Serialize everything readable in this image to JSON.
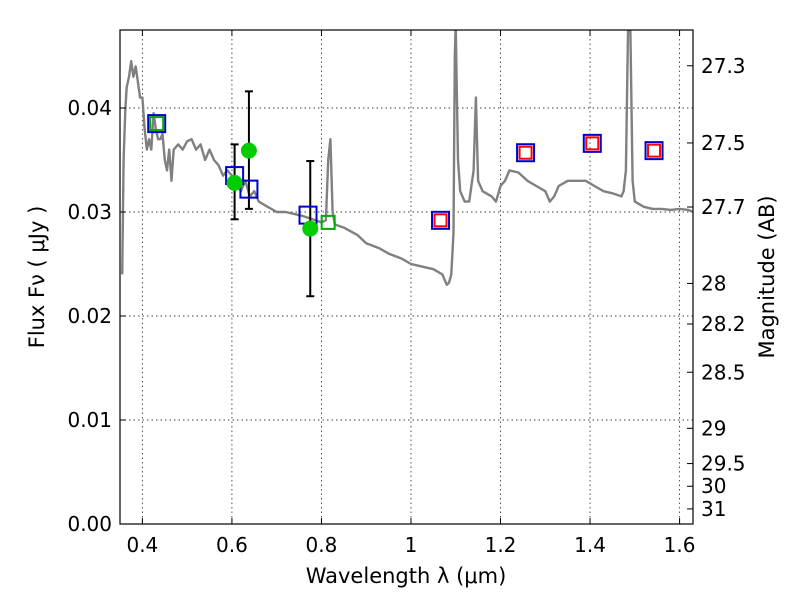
{
  "chart_data": {
    "type": "scatter",
    "xlabel": "Wavelength  λ (μm)",
    "ylabel": "Flux  Fν  ( μJy )",
    "ylabel2": "Magnitude (AB)",
    "xlim": [
      0.35,
      1.63
    ],
    "ylim": [
      0.0,
      0.0475
    ],
    "xticks": [
      0.4,
      0.6,
      0.8,
      1.0,
      1.2,
      1.4,
      1.6
    ],
    "xtick_labels": [
      "0.4",
      "0.6",
      "0.8",
      "1",
      "1.2",
      "1.4",
      "1.6"
    ],
    "yticks": [
      0.0,
      0.01,
      0.02,
      0.03,
      0.04
    ],
    "ytick_labels": [
      "0.00",
      "0.01",
      "0.02",
      "0.03",
      "0.04"
    ],
    "mag_ticks": [
      {
        "label": "27.3",
        "flux": 0.04406
      },
      {
        "label": "27.5",
        "flux": 0.03664
      },
      {
        "label": "27.7",
        "flux": 0.03048
      },
      {
        "label": "28",
        "flux": 0.02313
      },
      {
        "label": "28.2",
        "flux": 0.01923
      },
      {
        "label": "28.5",
        "flux": 0.01459
      },
      {
        "label": "29",
        "flux": 0.0092
      },
      {
        "label": "29.5",
        "flux": 0.00581
      },
      {
        "label": "30",
        "flux": 0.00363
      },
      {
        "label": "31",
        "flux": 0.00145
      }
    ],
    "grid": true,
    "series": [
      {
        "kind": "line",
        "color": "#808080",
        "x": [
          0.355,
          0.358,
          0.362,
          0.365,
          0.37,
          0.375,
          0.38,
          0.385,
          0.39,
          0.395,
          0.4,
          0.405,
          0.41,
          0.415,
          0.42,
          0.425,
          0.43,
          0.435,
          0.44,
          0.445,
          0.45,
          0.455,
          0.46,
          0.465,
          0.47,
          0.48,
          0.49,
          0.5,
          0.51,
          0.52,
          0.53,
          0.54,
          0.55,
          0.56,
          0.57,
          0.58,
          0.59,
          0.6,
          0.61,
          0.62,
          0.63,
          0.64,
          0.65,
          0.66,
          0.68,
          0.7,
          0.72,
          0.74,
          0.76,
          0.78,
          0.8,
          0.81,
          0.815,
          0.82,
          0.825,
          0.83,
          0.85,
          0.88,
          0.9,
          0.93,
          0.95,
          0.98,
          1.0,
          1.02,
          1.05,
          1.07,
          1.08,
          1.085,
          1.09,
          1.095,
          1.098,
          1.1,
          1.105,
          1.11,
          1.12,
          1.13,
          1.14,
          1.145,
          1.15,
          1.16,
          1.18,
          1.19,
          1.2,
          1.21,
          1.22,
          1.24,
          1.26,
          1.28,
          1.3,
          1.31,
          1.32,
          1.33,
          1.35,
          1.37,
          1.39,
          1.41,
          1.43,
          1.45,
          1.47,
          1.475,
          1.48,
          1.485,
          1.49,
          1.495,
          1.5,
          1.52,
          1.54,
          1.56,
          1.58,
          1.6,
          1.62,
          1.63
        ],
        "y": [
          0.024,
          0.035,
          0.04,
          0.042,
          0.043,
          0.0445,
          0.043,
          0.044,
          0.0425,
          0.041,
          0.041,
          0.038,
          0.036,
          0.037,
          0.036,
          0.0395,
          0.038,
          0.037,
          0.037,
          0.0375,
          0.035,
          0.034,
          0.036,
          0.033,
          0.036,
          0.0365,
          0.036,
          0.0368,
          0.037,
          0.036,
          0.0365,
          0.035,
          0.036,
          0.035,
          0.0345,
          0.0335,
          0.034,
          0.0335,
          0.033,
          0.032,
          0.033,
          0.0315,
          0.032,
          0.031,
          0.0305,
          0.03,
          0.03,
          0.0298,
          0.0296,
          0.0293,
          0.029,
          0.0292,
          0.035,
          0.037,
          0.03,
          0.0288,
          0.0285,
          0.0278,
          0.027,
          0.0265,
          0.026,
          0.0255,
          0.025,
          0.0248,
          0.0245,
          0.024,
          0.023,
          0.0232,
          0.024,
          0.028,
          0.045,
          0.048,
          0.035,
          0.032,
          0.031,
          0.031,
          0.034,
          0.041,
          0.033,
          0.032,
          0.0315,
          0.031,
          0.0325,
          0.033,
          0.034,
          0.0338,
          0.033,
          0.0325,
          0.032,
          0.031,
          0.0315,
          0.0325,
          0.033,
          0.033,
          0.033,
          0.0325,
          0.032,
          0.0318,
          0.0315,
          0.032,
          0.034,
          0.048,
          0.048,
          0.033,
          0.031,
          0.0305,
          0.0303,
          0.0303,
          0.0302,
          0.0303,
          0.0302,
          0.03
        ]
      },
      {
        "kind": "points",
        "name": "open-blue-squares",
        "marker": "square-open",
        "color": "#0000cc",
        "points": [
          [
            0.432,
            0.0385
          ],
          [
            0.606,
            0.0335
          ],
          [
            0.638,
            0.0322
          ],
          [
            0.77,
            0.0297
          ],
          [
            1.066,
            0.0292
          ],
          [
            1.256,
            0.0357
          ],
          [
            1.405,
            0.0366
          ],
          [
            1.543,
            0.0359
          ]
        ]
      },
      {
        "kind": "points",
        "name": "open-green-squares",
        "marker": "square-open",
        "color": "#00aa00",
        "points": [
          [
            0.432,
            0.0385
          ],
          [
            0.815,
            0.029
          ]
        ]
      },
      {
        "kind": "points",
        "name": "open-red-squares",
        "marker": "square-open",
        "color": "#ff0000",
        "points": [
          [
            1.066,
            0.0292
          ],
          [
            1.256,
            0.0357
          ],
          [
            1.405,
            0.0366
          ],
          [
            1.543,
            0.0359
          ]
        ]
      },
      {
        "kind": "points",
        "name": "green-dots",
        "marker": "circle-filled",
        "color": "#00cc00",
        "points": [
          [
            0.606,
            0.0328
          ],
          [
            0.638,
            0.0359
          ],
          [
            0.775,
            0.0284
          ]
        ]
      },
      {
        "kind": "errorbars",
        "name": "error-bars",
        "color": "#000000",
        "bars": [
          {
            "x": 0.606,
            "low": 0.0293,
            "high": 0.0365
          },
          {
            "x": 0.638,
            "low": 0.0303,
            "high": 0.0416
          },
          {
            "x": 0.775,
            "low": 0.0219,
            "high": 0.0349
          }
        ]
      }
    ]
  }
}
